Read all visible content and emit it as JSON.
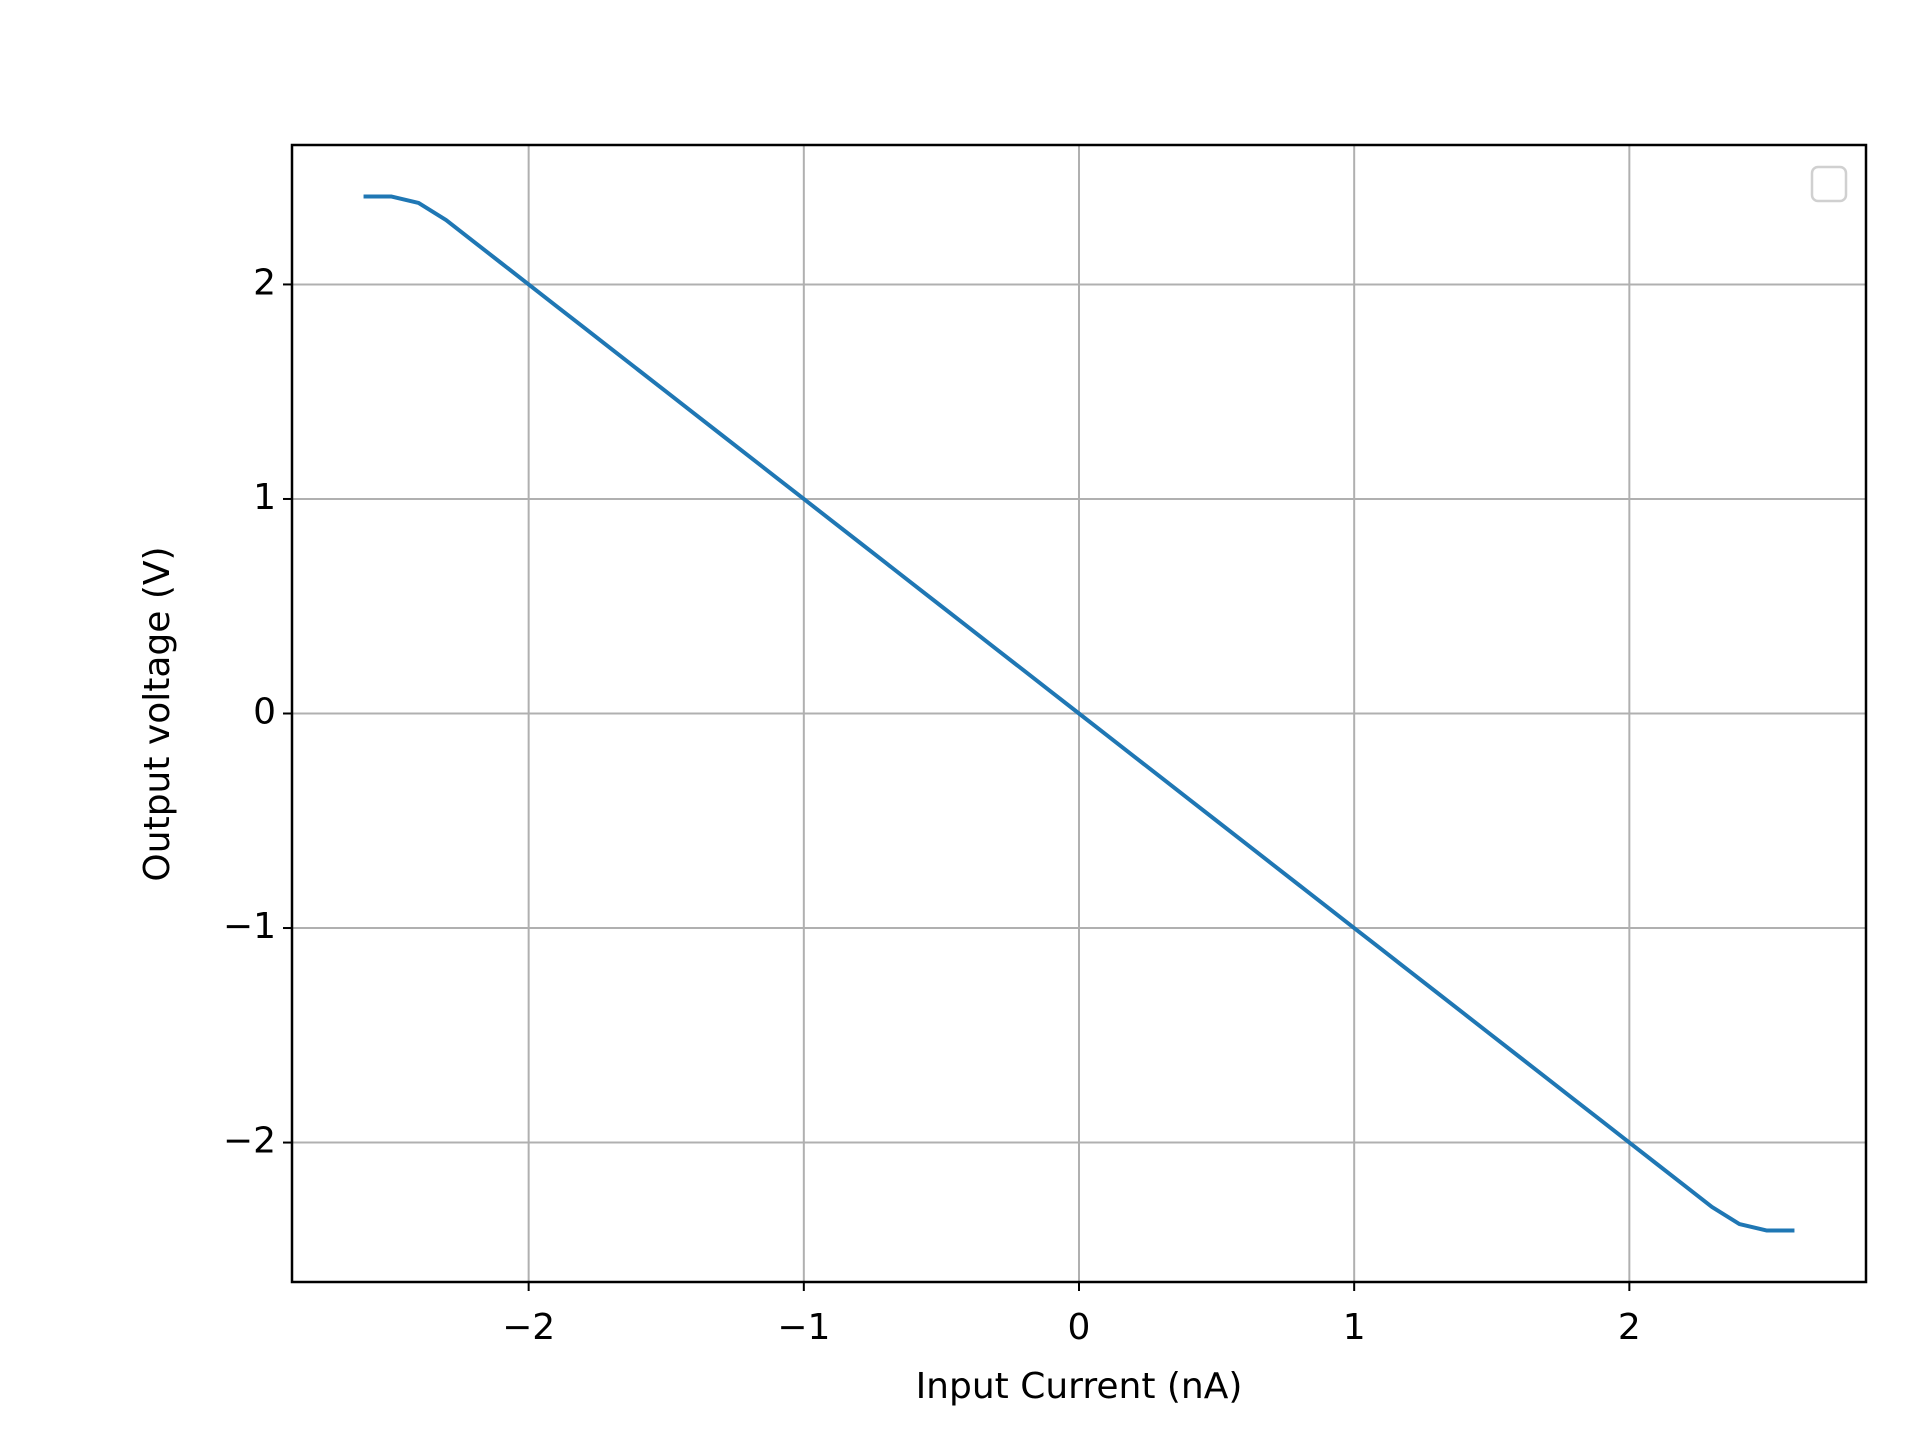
{
  "chart_data": {
    "type": "line",
    "xlabel": "Input Current (nA)",
    "ylabel": "Output voltage (V)",
    "x": [
      -2.6,
      -2.5,
      -2.4,
      -2.3,
      -2.2,
      -2.1,
      -2.0,
      -1.9,
      -1.8,
      -1.7,
      -1.6,
      -1.5,
      -1.4,
      -1.3,
      -1.2,
      -1.1,
      -1.0,
      -0.9,
      -0.8,
      -0.7,
      -0.6,
      -0.5,
      -0.4,
      -0.3,
      -0.2,
      -0.1,
      0,
      0.1,
      0.2,
      0.3,
      0.4,
      0.5,
      0.6,
      0.7,
      0.8,
      0.9,
      1.0,
      1.1,
      1.2,
      1.3,
      1.4,
      1.5,
      1.6,
      1.7,
      1.8,
      1.9,
      2.0,
      2.1,
      2.2,
      2.3,
      2.4,
      2.5,
      2.6
    ],
    "values": [
      2.41,
      2.41,
      2.38,
      2.3,
      2.2,
      2.1,
      2.0,
      1.9,
      1.8,
      1.7,
      1.6,
      1.5,
      1.4,
      1.3,
      1.2,
      1.1,
      1.0,
      0.9,
      0.8,
      0.7,
      0.6,
      0.5,
      0.4,
      0.3,
      0.2,
      0.1,
      0,
      -0.1,
      -0.2,
      -0.3,
      -0.4,
      -0.5,
      -0.6,
      -0.7,
      -0.8,
      -0.9,
      -1.0,
      -1.1,
      -1.2,
      -1.3,
      -1.4,
      -1.5,
      -1.6,
      -1.7,
      -1.8,
      -1.9,
      -2.0,
      -2.1,
      -2.2,
      -2.3,
      -2.38,
      -2.41,
      -2.41
    ],
    "color": "#1f77b4",
    "xlim": [
      -2.86,
      2.86
    ],
    "ylim": [
      -2.65,
      2.65
    ],
    "xticks": [
      {
        "value": -2,
        "label": "−2"
      },
      {
        "value": -1,
        "label": "−1"
      },
      0,
      1,
      2
    ],
    "yticks": [
      {
        "value": -2,
        "label": "−2"
      },
      {
        "value": -1,
        "label": "−1"
      },
      0,
      1,
      2
    ],
    "grid": true,
    "legend": "upper right"
  }
}
